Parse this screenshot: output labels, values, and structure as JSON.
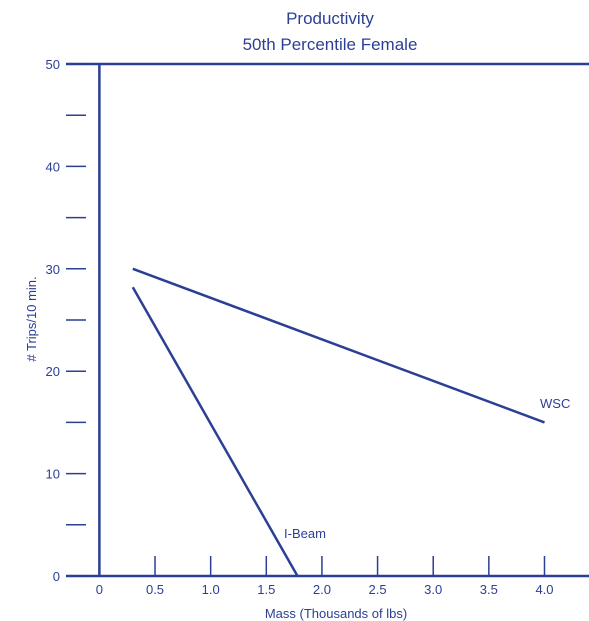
{
  "chart_data": {
    "type": "line",
    "title": "Productivity",
    "subtitle": "50th Percentile Female",
    "xlabel": "Mass (Thousands of lbs)",
    "ylabel": "# Trips/10 min.",
    "xlim": [
      -0.3,
      4.4
    ],
    "ylim": [
      0,
      50
    ],
    "x_ticks": [
      0,
      0.5,
      1.0,
      1.5,
      2.0,
      2.5,
      3.0,
      3.5,
      4.0
    ],
    "x_tick_labels": [
      "0",
      "0.5",
      "1.0",
      "1.5",
      "2.0",
      "2.5",
      "3.0",
      "3.5",
      "4.0"
    ],
    "y_major_ticks": [
      0,
      10,
      20,
      30,
      40,
      50
    ],
    "y_tick_labels": [
      "0",
      "10",
      "20",
      "30",
      "40",
      "50"
    ],
    "y_minor_ticks": [
      5,
      15,
      25,
      35,
      45
    ],
    "grid": false,
    "legend": "none",
    "color": "#2b3f94",
    "series": [
      {
        "name": "WSC",
        "x": [
          0.3,
          4.0
        ],
        "y": [
          30,
          15
        ]
      },
      {
        "name": "I-Beam",
        "x": [
          0.3,
          1.78
        ],
        "y": [
          28.2,
          0
        ]
      }
    ]
  }
}
